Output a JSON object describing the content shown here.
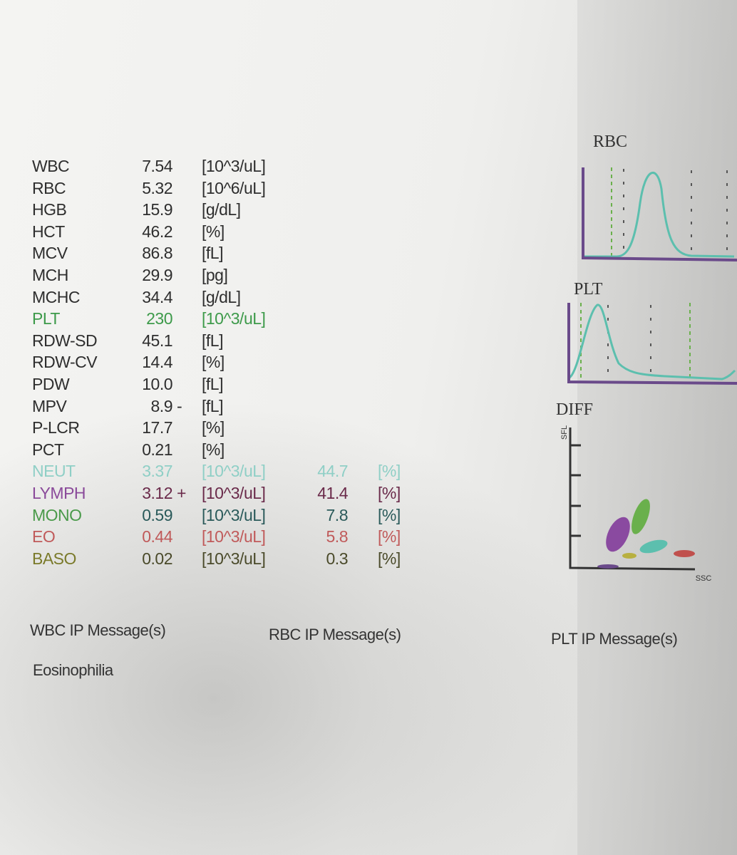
{
  "results": {
    "rows": [
      {
        "name": "WBC",
        "value": "7.54",
        "unit": "[10^3/uL]"
      },
      {
        "name": "RBC",
        "value": "5.32",
        "unit": "[10^6/uL]"
      },
      {
        "name": "HGB",
        "value": "15.9",
        "unit": "[g/dL]"
      },
      {
        "name": "HCT",
        "value": "46.2",
        "unit": "[%]"
      },
      {
        "name": "MCV",
        "value": "86.8",
        "unit": "[fL]"
      },
      {
        "name": "MCH",
        "value": "29.9",
        "unit": "[pg]"
      },
      {
        "name": "MCHC",
        "value": "34.4",
        "unit": "[g/dL]"
      },
      {
        "name": "PLT",
        "value": "230",
        "unit": "[10^3/uL]"
      },
      {
        "name": "RDW-SD",
        "value": "45.1",
        "unit": "[fL]"
      },
      {
        "name": "RDW-CV",
        "value": "14.4",
        "unit": "[%]"
      },
      {
        "name": "PDW",
        "value": "10.0",
        "unit": "[fL]"
      },
      {
        "name": "MPV",
        "value": "8.9",
        "flag": "-",
        "unit": "[fL]"
      },
      {
        "name": "P-LCR",
        "value": "17.7",
        "unit": "[%]"
      },
      {
        "name": "PCT",
        "value": "0.21",
        "unit": "[%]"
      },
      {
        "name": "NEUT",
        "value": "3.37",
        "unit": "[10^3/uL]",
        "pct": "44.7",
        "pct_unit": "[%]"
      },
      {
        "name": "LYMPH",
        "value": "3.12",
        "flag": "+",
        "unit": "[10^3/uL]",
        "pct": "41.4",
        "pct_unit": "[%]"
      },
      {
        "name": "MONO",
        "value": "0.59",
        "unit": "[10^3/uL]",
        "pct": "7.8",
        "pct_unit": "[%]"
      },
      {
        "name": "EO",
        "value": "0.44",
        "unit": "[10^3/uL]",
        "pct": "5.8",
        "pct_unit": "[%]"
      },
      {
        "name": "BASO",
        "value": "0.02",
        "unit": "[10^3/uL]",
        "pct": "0.3",
        "pct_unit": "[%]"
      }
    ]
  },
  "graphs": {
    "rbc": {
      "title": "RBC"
    },
    "plt": {
      "title": "PLT"
    },
    "diff": {
      "title": "DIFF",
      "y_label": "SFL",
      "x_label": "SSC"
    }
  },
  "messages": {
    "wbc": {
      "title": "WBC IP Message(s)",
      "items": [
        "Eosinophilia"
      ]
    },
    "rbc": {
      "title": "RBC IP Message(s)"
    },
    "plt": {
      "title": "PLT IP Message(s)"
    }
  }
}
